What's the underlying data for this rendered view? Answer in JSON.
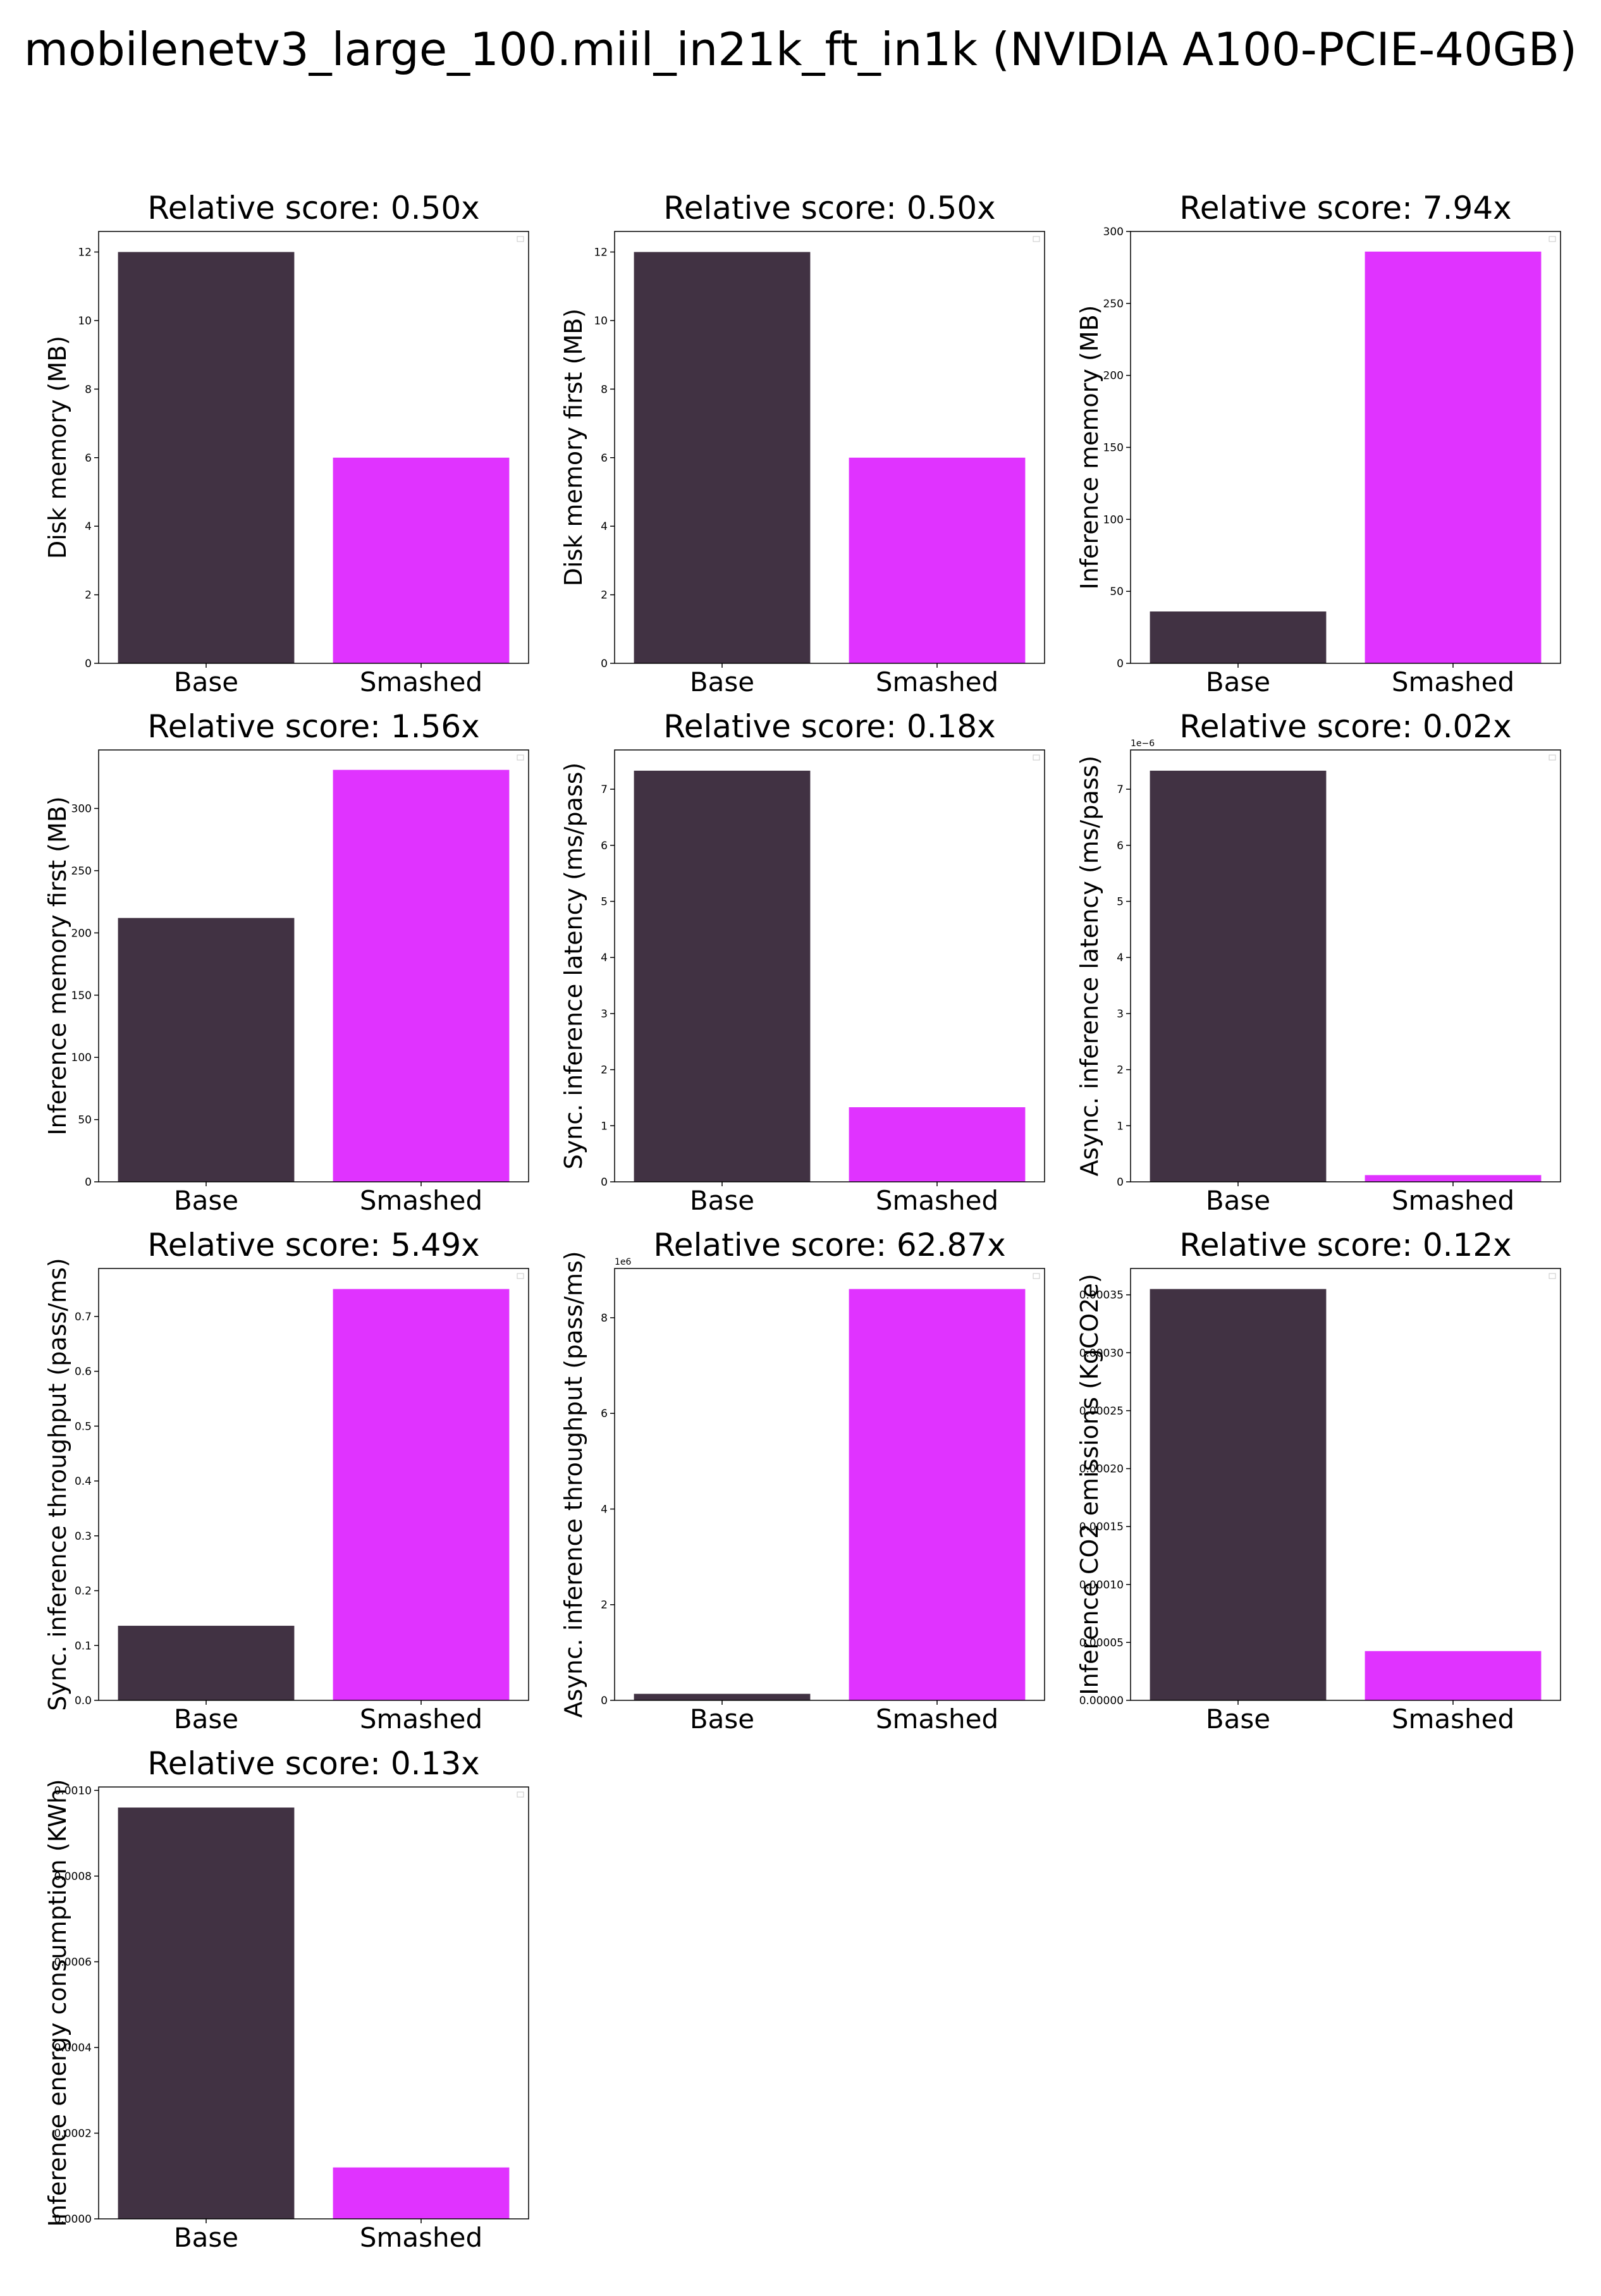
{
  "figure_title": "mobilenetv3_large_100.miil_in21k_ft_in1k (NVIDIA A100-PCIE-40GB)",
  "colors": {
    "base": "#413243",
    "smashed": "#e033ff"
  },
  "chart_data": [
    {
      "type": "bar",
      "title": "Relative score: 0.50x",
      "ylabel": "Disk memory (MB)",
      "categories": [
        "Base",
        "Smashed"
      ],
      "values": [
        12.0,
        6.0
      ],
      "ylim": [
        0,
        12.6
      ],
      "yticks": [
        0,
        2,
        4,
        6,
        8,
        10,
        12
      ],
      "ytick_labels": [
        "0",
        "2",
        "4",
        "6",
        "8",
        "10",
        "12"
      ],
      "offset_text": ""
    },
    {
      "type": "bar",
      "title": "Relative score: 0.50x",
      "ylabel": "Disk memory first (MB)",
      "categories": [
        "Base",
        "Smashed"
      ],
      "values": [
        12.0,
        6.0
      ],
      "ylim": [
        0,
        12.6
      ],
      "yticks": [
        0,
        2,
        4,
        6,
        8,
        10,
        12
      ],
      "ytick_labels": [
        "0",
        "2",
        "4",
        "6",
        "8",
        "10",
        "12"
      ],
      "offset_text": ""
    },
    {
      "type": "bar",
      "title": "Relative score: 7.94x",
      "ylabel": "Inference memory (MB)",
      "categories": [
        "Base",
        "Smashed"
      ],
      "values": [
        36,
        286
      ],
      "ylim": [
        0,
        300
      ],
      "yticks": [
        0,
        50,
        100,
        150,
        200,
        250,
        300
      ],
      "ytick_labels": [
        "0",
        "50",
        "100",
        "150",
        "200",
        "250",
        "300"
      ],
      "offset_text": ""
    },
    {
      "type": "bar",
      "title": "Relative score: 1.56x",
      "ylabel": "Inference memory first (MB)",
      "categories": [
        "Base",
        "Smashed"
      ],
      "values": [
        212,
        331
      ],
      "ylim": [
        0,
        347
      ],
      "yticks": [
        0,
        50,
        100,
        150,
        200,
        250,
        300
      ],
      "ytick_labels": [
        "0",
        "50",
        "100",
        "150",
        "200",
        "250",
        "300"
      ],
      "offset_text": ""
    },
    {
      "type": "bar",
      "title": "Relative score: 0.18x",
      "ylabel": "Sync. inference latency (ms/pass)",
      "categories": [
        "Base",
        "Smashed"
      ],
      "values": [
        7.33,
        1.33
      ],
      "ylim": [
        0,
        7.7
      ],
      "yticks": [
        0,
        1,
        2,
        3,
        4,
        5,
        6,
        7
      ],
      "ytick_labels": [
        "0",
        "1",
        "2",
        "3",
        "4",
        "5",
        "6",
        "7"
      ],
      "offset_text": ""
    },
    {
      "type": "bar",
      "title": "Relative score: 0.02x",
      "ylabel": "Async. inference latency (ms/pass)",
      "categories": [
        "Base",
        "Smashed"
      ],
      "values": [
        7.33e-06,
        1.2e-07
      ],
      "ylim": [
        0,
        7.7e-06
      ],
      "yticks": [
        0,
        1e-06,
        2e-06,
        3e-06,
        4e-06,
        5e-06,
        6e-06,
        7e-06
      ],
      "ytick_labels": [
        "0",
        "1",
        "2",
        "3",
        "4",
        "5",
        "6",
        "7"
      ],
      "offset_text": "1e−6"
    },
    {
      "type": "bar",
      "title": "Relative score: 5.49x",
      "ylabel": "Sync. inference throughput (pass/ms)",
      "categories": [
        "Base",
        "Smashed"
      ],
      "values": [
        0.136,
        0.75
      ],
      "ylim": [
        0,
        0.7875
      ],
      "yticks": [
        0,
        0.1,
        0.2,
        0.3,
        0.4,
        0.5,
        0.6,
        0.7
      ],
      "ytick_labels": [
        "0.0",
        "0.1",
        "0.2",
        "0.3",
        "0.4",
        "0.5",
        "0.6",
        "0.7"
      ],
      "offset_text": ""
    },
    {
      "type": "bar",
      "title": "Relative score: 62.87x",
      "ylabel": "Async. inference throughput (pass/ms)",
      "categories": [
        "Base",
        "Smashed"
      ],
      "values": [
        136000,
        8600000
      ],
      "ylim": [
        0,
        9030000
      ],
      "yticks": [
        0,
        2000000,
        4000000,
        6000000,
        8000000
      ],
      "ytick_labels": [
        "0",
        "2",
        "4",
        "6",
        "8"
      ],
      "offset_text": "1e6"
    },
    {
      "type": "bar",
      "title": "Relative score: 0.12x",
      "ylabel": "Inference CO2 emissions (KgCO2e)",
      "categories": [
        "Base",
        "Smashed"
      ],
      "values": [
        0.000355,
        4.25e-05
      ],
      "ylim": [
        0,
        0.00037275
      ],
      "yticks": [
        0,
        5e-05,
        0.0001,
        0.00015,
        0.0002,
        0.00025,
        0.0003,
        0.00035
      ],
      "ytick_labels": [
        "0.00000",
        "0.00005",
        "0.00010",
        "0.00015",
        "0.00020",
        "0.00025",
        "0.00030",
        "0.00035"
      ],
      "offset_text": ""
    },
    {
      "type": "bar",
      "title": "Relative score: 0.13x",
      "ylabel": "Inference energy consumption (KWh)",
      "categories": [
        "Base",
        "Smashed"
      ],
      "values": [
        0.00096,
        0.00012
      ],
      "ylim": [
        0,
        0.001008
      ],
      "yticks": [
        0,
        0.0002,
        0.0004,
        0.0006,
        0.0008,
        0.001
      ],
      "ytick_labels": [
        "0.0000",
        "0.0002",
        "0.0004",
        "0.0006",
        "0.0008",
        "0.0010"
      ],
      "offset_text": ""
    }
  ]
}
